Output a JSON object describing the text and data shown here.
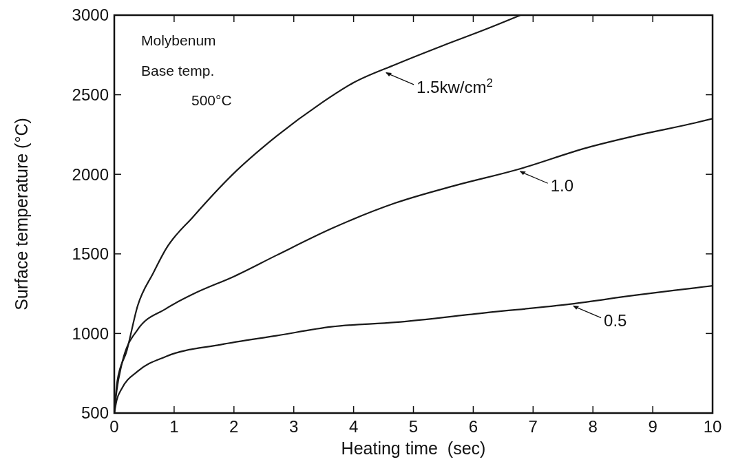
{
  "chart_data": {
    "type": "line",
    "xlabel": "Heating time  (sec)",
    "ylabel": "Surface temperature (°C)",
    "xlim": [
      0,
      10
    ],
    "ylim": [
      500,
      3000
    ],
    "xticks": [
      0,
      1,
      2,
      3,
      4,
      5,
      6,
      7,
      8,
      9,
      10
    ],
    "yticks": [
      500,
      1000,
      1500,
      2000,
      2500,
      3000
    ],
    "grid": false,
    "marker": "none",
    "line_style": "solid",
    "series": [
      {
        "color": "#1a1a1a",
        "x": [
          0,
          0.05,
          0.21,
          0.39,
          0.65,
          0.86,
          1.32,
          1.97,
          2.71,
          3.45,
          4.0,
          4.7,
          5.5,
          6.2,
          6.79
        ],
        "values": [
          500,
          700,
          893,
          1173,
          1379,
          1529,
          1734,
          1996,
          2239,
          2445,
          2576,
          2690,
          2810,
          2910,
          3000
        ]
      },
      {
        "color": "#1a1a1a",
        "x": [
          0,
          0.04,
          0.12,
          0.39,
          0.86,
          1.32,
          2.01,
          2.71,
          3.63,
          4.7,
          5.7,
          6.74,
          7.9,
          8.8,
          9.72,
          10
        ],
        "values": [
          500,
          640,
          799,
          1024,
          1155,
          1248,
          1360,
          1491,
          1659,
          1820,
          1930,
          2030,
          2167,
          2250,
          2324,
          2350
        ]
      },
      {
        "color": "#1a1a1a",
        "x": [
          0,
          0.04,
          0.12,
          0.39,
          0.86,
          1.78,
          2.71,
          3.63,
          4.7,
          6.2,
          7.63,
          8.7,
          9.72,
          10
        ],
        "values": [
          500,
          580,
          650,
          762,
          855,
          930,
          986,
          1042,
          1070,
          1130,
          1185,
          1240,
          1287,
          1300
        ]
      }
    ],
    "annotations": [
      "Molybenum",
      "Base temp.",
      "500°C",
      {
        "text": "1.5kw/cm$^{2}$",
        "x": 4.5,
        "y": 2650
      },
      {
        "text": "1.0",
        "x": 6.74,
        "y": 2030
      },
      {
        "text": "0.5",
        "x": 7.63,
        "y": 1185
      }
    ]
  }
}
